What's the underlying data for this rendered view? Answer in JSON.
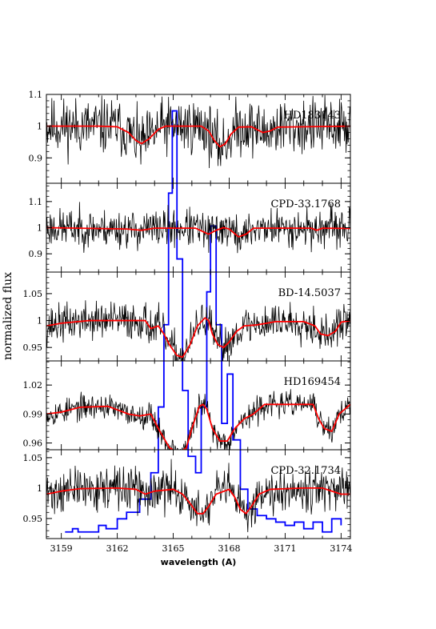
{
  "chart_data": {
    "type": "line",
    "ylabel": "normalized flux",
    "xlabel": "wavelength (A)",
    "xlim": [
      3158.2,
      3174.5
    ],
    "xticks": [
      3159,
      3162,
      3165,
      3168,
      3171,
      3174
    ],
    "x_minor_step": 1,
    "series_styles": [
      {
        "key": "observed",
        "color": "#000000"
      },
      {
        "key": "model",
        "color": "#ff0000"
      },
      {
        "key": "blue_spectrum",
        "color": "#0000ff"
      }
    ],
    "panels": [
      {
        "star": "HD183143",
        "ylim": [
          0.82,
          1.1
        ],
        "yticks": [
          0.9,
          1,
          1.1
        ],
        "ytick_labels": [
          "0.9",
          "1",
          "1.1"
        ],
        "observed": {
          "noise": 0.055,
          "seed": 11
        },
        "model": {
          "continuum": 1.0,
          "points": [
            [
              3158.2,
              1.0
            ],
            [
              3161.0,
              1.0
            ],
            [
              3162.0,
              0.998
            ],
            [
              3162.6,
              0.98
            ],
            [
              3163.0,
              0.955
            ],
            [
              3163.3,
              0.945
            ],
            [
              3163.7,
              0.96
            ],
            [
              3164.2,
              0.99
            ],
            [
              3164.6,
              1.0
            ],
            [
              3166.5,
              1.0
            ],
            [
              3166.9,
              0.985
            ],
            [
              3167.2,
              0.955
            ],
            [
              3167.5,
              0.935
            ],
            [
              3167.8,
              0.945
            ],
            [
              3168.1,
              0.975
            ],
            [
              3168.5,
              0.997
            ],
            [
              3169.2,
              0.998
            ],
            [
              3169.8,
              0.98
            ],
            [
              3170.2,
              0.985
            ],
            [
              3170.6,
              0.997
            ],
            [
              3174.5,
              1.0
            ]
          ]
        }
      },
      {
        "star": "CPD-33.1768",
        "ylim": [
          0.83,
          1.17
        ],
        "yticks": [
          0.9,
          1,
          1.1
        ],
        "ytick_labels": [
          "0.9",
          "1",
          "1.1"
        ],
        "observed": {
          "noise": 0.045,
          "seed": 23
        },
        "model": {
          "continuum": 1.0,
          "points": [
            [
              3158.2,
              1.0
            ],
            [
              3162.5,
              0.995
            ],
            [
              3163.3,
              0.99
            ],
            [
              3164.0,
              0.998
            ],
            [
              3166.2,
              0.998
            ],
            [
              3166.6,
              0.985
            ],
            [
              3166.9,
              0.975
            ],
            [
              3167.3,
              0.99
            ],
            [
              3167.7,
              1.0
            ],
            [
              3168.0,
              0.995
            ],
            [
              3168.5,
              0.965
            ],
            [
              3168.9,
              0.975
            ],
            [
              3169.3,
              0.998
            ],
            [
              3172.4,
              0.998
            ],
            [
              3172.7,
              0.99
            ],
            [
              3173.0,
              0.998
            ],
            [
              3174.5,
              0.997
            ]
          ]
        }
      },
      {
        "star": "BD-14.5037",
        "ylim": [
          0.925,
          1.09
        ],
        "yticks": [
          0.95,
          1,
          1.05
        ],
        "ytick_labels": [
          "0.95",
          "1",
          "1.05"
        ],
        "observed": {
          "noise": 0.022,
          "seed": 37
        },
        "model": {
          "continuum": 1.0,
          "points": [
            [
              3158.2,
              0.99
            ],
            [
              3159.0,
              0.995
            ],
            [
              3160.5,
              1.0
            ],
            [
              3163.5,
              1.0
            ],
            [
              3163.8,
              0.985
            ],
            [
              3164.2,
              0.99
            ],
            [
              3164.5,
              0.975
            ],
            [
              3164.8,
              0.955
            ],
            [
              3165.2,
              0.935
            ],
            [
              3165.5,
              0.932
            ],
            [
              3165.9,
              0.955
            ],
            [
              3166.3,
              0.99
            ],
            [
              3166.7,
              1.005
            ],
            [
              3166.9,
              1.0
            ],
            [
              3167.1,
              0.975
            ],
            [
              3167.4,
              0.955
            ],
            [
              3167.7,
              0.95
            ],
            [
              3168.0,
              0.96
            ],
            [
              3168.4,
              0.98
            ],
            [
              3168.8,
              0.99
            ],
            [
              3169.5,
              0.992
            ],
            [
              3170.5,
              0.998
            ],
            [
              3172.0,
              0.998
            ],
            [
              3172.6,
              0.99
            ],
            [
              3172.9,
              0.975
            ],
            [
              3173.3,
              0.972
            ],
            [
              3173.7,
              0.98
            ],
            [
              3174.0,
              0.997
            ],
            [
              3174.5,
              1.0
            ]
          ]
        }
      },
      {
        "star": "HD169454",
        "ylim": [
          0.953,
          1.045
        ],
        "yticks": [
          0.96,
          0.99,
          1.02
        ],
        "ytick_labels": [
          "0.96",
          "0.99",
          "1.02"
        ],
        "observed": {
          "noise": 0.008,
          "seed": 53
        },
        "model": {
          "continuum": 0.99,
          "points": [
            [
              3158.2,
              0.99
            ],
            [
              3159.0,
              0.992
            ],
            [
              3160.0,
              0.997
            ],
            [
              3161.5,
              0.998
            ],
            [
              3162.6,
              0.99
            ],
            [
              3163.2,
              0.988
            ],
            [
              3163.8,
              0.99
            ],
            [
              3164.2,
              0.975
            ],
            [
              3164.5,
              0.965
            ],
            [
              3164.8,
              0.955
            ],
            [
              3165.3,
              0.95
            ],
            [
              3165.7,
              0.955
            ],
            [
              3166.0,
              0.975
            ],
            [
              3166.4,
              0.998
            ],
            [
              3166.6,
              1.0
            ],
            [
              3166.8,
              0.995
            ],
            [
              3167.1,
              0.975
            ],
            [
              3167.5,
              0.962
            ],
            [
              3167.9,
              0.962
            ],
            [
              3168.3,
              0.975
            ],
            [
              3168.8,
              0.985
            ],
            [
              3169.3,
              0.99
            ],
            [
              3169.9,
              1.0
            ],
            [
              3172.5,
              1.0
            ],
            [
              3172.8,
              0.985
            ],
            [
              3173.1,
              0.975
            ],
            [
              3173.5,
              0.972
            ],
            [
              3173.9,
              0.99
            ],
            [
              3174.5,
              1.0
            ]
          ]
        }
      },
      {
        "star": "CPD-32.1734",
        "ylim": [
          0.917,
          1.063
        ],
        "yticks": [
          0.95,
          1,
          1.05
        ],
        "ytick_labels": [
          "0.95",
          "1",
          "1.05"
        ],
        "observed": {
          "noise": 0.022,
          "seed": 71
        },
        "model": {
          "continuum": 1.0,
          "points": [
            [
              3158.2,
              0.99
            ],
            [
              3159.0,
              0.995
            ],
            [
              3160.0,
              0.999
            ],
            [
              3162.0,
              1.0
            ],
            [
              3163.0,
              0.998
            ],
            [
              3163.5,
              0.99
            ],
            [
              3164.0,
              0.995
            ],
            [
              3165.0,
              0.998
            ],
            [
              3165.5,
              0.99
            ],
            [
              3165.9,
              0.975
            ],
            [
              3166.3,
              0.958
            ],
            [
              3166.6,
              0.958
            ],
            [
              3166.9,
              0.97
            ],
            [
              3167.3,
              0.99
            ],
            [
              3168.0,
              0.998
            ],
            [
              3168.3,
              0.985
            ],
            [
              3168.6,
              0.965
            ],
            [
              3168.9,
              0.958
            ],
            [
              3169.2,
              0.97
            ],
            [
              3169.6,
              0.99
            ],
            [
              3170.2,
              0.998
            ],
            [
              3172.0,
              1.0
            ],
            [
              3173.0,
              1.0
            ],
            [
              3174.0,
              0.99
            ],
            [
              3174.5,
              0.99
            ]
          ]
        }
      }
    ],
    "blue_spectrum": {
      "approximate": true,
      "points": [
        [
          3159.2,
          0.92
        ],
        [
          3159.6,
          0.93
        ],
        [
          3159.9,
          0.92
        ],
        [
          3160.6,
          0.92
        ],
        [
          3161.0,
          0.94
        ],
        [
          3161.4,
          0.93
        ],
        [
          3162.0,
          0.96
        ],
        [
          3162.5,
          0.98
        ],
        [
          3163.2,
          1.02
        ],
        [
          3163.8,
          1.1
        ],
        [
          3164.2,
          1.3
        ],
        [
          3164.5,
          1.55
        ],
        [
          3164.75,
          1.95
        ],
        [
          3164.95,
          2.2
        ],
        [
          3165.2,
          1.75
        ],
        [
          3165.5,
          1.35
        ],
        [
          3165.8,
          1.15
        ],
        [
          3166.2,
          1.1
        ],
        [
          3166.5,
          1.3
        ],
        [
          3166.8,
          1.65
        ],
        [
          3167.0,
          1.85
        ],
        [
          3167.3,
          1.55
        ],
        [
          3167.6,
          1.25
        ],
        [
          3167.9,
          1.4
        ],
        [
          3168.2,
          1.2
        ],
        [
          3168.6,
          1.05
        ],
        [
          3169.0,
          0.99
        ],
        [
          3169.5,
          0.97
        ],
        [
          3170.0,
          0.96
        ],
        [
          3170.5,
          0.95
        ],
        [
          3171.0,
          0.94
        ],
        [
          3171.5,
          0.95
        ],
        [
          3172.0,
          0.93
        ],
        [
          3172.5,
          0.95
        ],
        [
          3173.0,
          0.92
        ],
        [
          3173.5,
          0.96
        ],
        [
          3174.0,
          0.94
        ]
      ]
    }
  }
}
